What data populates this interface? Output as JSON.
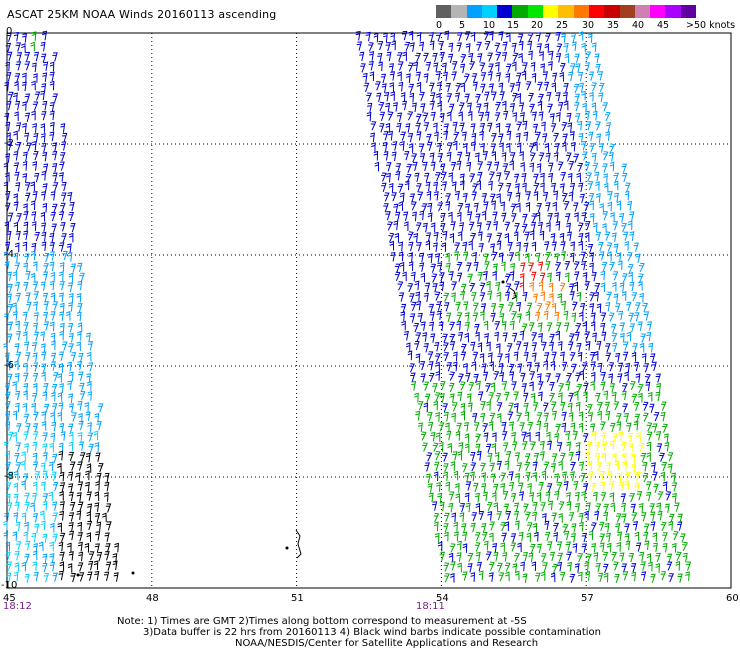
{
  "title": "ASCAT 25KM NOAA Winds 20160113 ascending",
  "colorbar": {
    "colors": [
      "#606060",
      "#b4b4b4",
      "#00a0ff",
      "#00d2ff",
      "#0000d2",
      "#00aa00",
      "#00e600",
      "#ffff00",
      "#ffbe00",
      "#ff7800",
      "#ff0000",
      "#c80000",
      "#a04020",
      "#d080b0",
      "#ff00ff",
      "#aa00ff",
      "#6000a0"
    ],
    "labels": [
      "0",
      "5",
      "10",
      "15",
      "20",
      "25",
      "30",
      "35",
      "40",
      "45",
      ">50 knots"
    ]
  },
  "axes": {
    "y_ticks": [
      "0",
      "-2",
      "-4",
      "-6",
      "-8",
      "-10"
    ],
    "x_ticks": [
      "45",
      "48",
      "51",
      "54",
      "57",
      "60"
    ],
    "lat_range": [
      0,
      -10
    ],
    "lon_range": [
      45,
      60
    ],
    "grid": "dotted"
  },
  "pass_times": [
    "18:12",
    "18:11"
  ],
  "notes": [
    "Note: 1) Times are GMT 2)Times along bottom correspond to measurement at -5S",
    "3)Data buffer is 22 hrs from 20160113 4) Black wind barbs indicate possible contamination",
    "NOAA/NESDIS/Center for Satellite Applications and Research"
  ],
  "legend_colors": {
    "blue": "#0000d2",
    "light_blue": "#00a0ff",
    "cyan": "#00d2ff",
    "green": "#00aa00",
    "yellow": "#ffff00",
    "orange": "#ff7800",
    "red": "#ff0000",
    "black": "#000000",
    "purple_time": "#7a1f8a"
  }
}
